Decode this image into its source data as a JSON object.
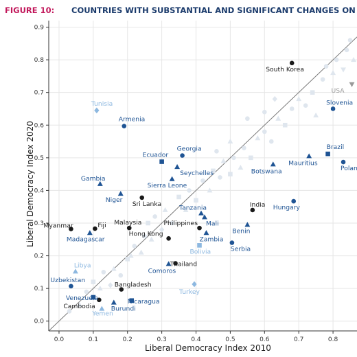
{
  "figure": {
    "label": "FIGURE 10:",
    "title": "COUNTRIES WITH SUBSTANTIAL AND SIGNIFICANT CHANGES ON THE LI"
  },
  "colors": {
    "title_label": "#c2185b",
    "title_text": "#1a3a6b",
    "dark_blue": "#1f5494",
    "light_blue": "#8db8e0",
    "black": "#1a1a1a",
    "gray": "#9a9a9a",
    "faint": "#dfe6ee",
    "grid": "#e6e6e6"
  },
  "chart_data": {
    "type": "scatter",
    "title": "COUNTRIES WITH SUBSTANTIAL AND SIGNIFICANT CHANGES ON THE LI",
    "xlabel": "Liberal Democracy Index 2010",
    "ylabel": "Liberal Democracy Index 2020",
    "xlim": [
      -0.03,
      0.87
    ],
    "ylim": [
      -0.03,
      0.92
    ],
    "xticks": [
      "0.0",
      "0.1",
      "0.2",
      "0.3",
      "0.4",
      "0.5",
      "0.6",
      "0.7",
      "0.8"
    ],
    "yticks": [
      "0.0",
      "0.1",
      "0.2",
      "0.3",
      "0.4",
      "0.5",
      "0.6",
      "0.7",
      "0.8",
      "0.9"
    ],
    "grid": true,
    "reference_line": "y = x",
    "labeled_points": [
      {
        "name": "South Korea",
        "x": 0.68,
        "y": 0.79,
        "shape": "circle",
        "color": "black"
      },
      {
        "name": "USA",
        "x": 0.855,
        "y": 0.725,
        "shape": "triangle-down",
        "color": "gray"
      },
      {
        "name": "Tunisia",
        "x": 0.11,
        "y": 0.645,
        "shape": "diamond",
        "color": "light"
      },
      {
        "name": "Armenia",
        "x": 0.19,
        "y": 0.597,
        "shape": "circle",
        "color": "dark"
      },
      {
        "name": "Slovenia",
        "x": 0.8,
        "y": 0.65,
        "shape": "circle",
        "color": "dark"
      },
      {
        "name": "Ecuador",
        "x": 0.3,
        "y": 0.488,
        "shape": "square",
        "color": "dark"
      },
      {
        "name": "Georgia",
        "x": 0.36,
        "y": 0.507,
        "shape": "circle",
        "color": "dark"
      },
      {
        "name": "Brazil",
        "x": 0.785,
        "y": 0.512,
        "shape": "square",
        "color": "dark"
      },
      {
        "name": "Mauritius",
        "x": 0.73,
        "y": 0.505,
        "shape": "triangle",
        "color": "dark"
      },
      {
        "name": "Poland",
        "x": 0.83,
        "y": 0.487,
        "shape": "circle",
        "color": "dark"
      },
      {
        "name": "Botswana",
        "x": 0.625,
        "y": 0.48,
        "shape": "triangle",
        "color": "dark"
      },
      {
        "name": "Seychelles",
        "x": 0.345,
        "y": 0.472,
        "shape": "triangle",
        "color": "dark"
      },
      {
        "name": "Gambia",
        "x": 0.12,
        "y": 0.42,
        "shape": "triangle",
        "color": "dark"
      },
      {
        "name": "Sierra Leone",
        "x": 0.33,
        "y": 0.435,
        "shape": "triangle",
        "color": "dark"
      },
      {
        "name": "Niger",
        "x": 0.18,
        "y": 0.39,
        "shape": "triangle",
        "color": "dark"
      },
      {
        "name": "Sri Lanka",
        "x": 0.242,
        "y": 0.378,
        "shape": "circle",
        "color": "black"
      },
      {
        "name": "India",
        "x": 0.565,
        "y": 0.34,
        "shape": "circle",
        "color": "black"
      },
      {
        "name": "Hungary",
        "x": 0.685,
        "y": 0.367,
        "shape": "circle",
        "color": "dark"
      },
      {
        "name": "Tanzania",
        "x": 0.415,
        "y": 0.33,
        "shape": "triangle",
        "color": "dark"
      },
      {
        "name": "Mali",
        "x": 0.425,
        "y": 0.318,
        "shape": "triangle",
        "color": "dark"
      },
      {
        "name": "Myanmar",
        "x": 0.035,
        "y": 0.282,
        "shape": "circle",
        "color": "black"
      },
      {
        "name": "Fiji",
        "x": 0.105,
        "y": 0.283,
        "shape": "circle",
        "color": "black"
      },
      {
        "name": "Malaysia",
        "x": 0.205,
        "y": 0.285,
        "shape": "circle",
        "color": "black"
      },
      {
        "name": "Philippines",
        "x": 0.41,
        "y": 0.285,
        "shape": "circle",
        "color": "black"
      },
      {
        "name": "Madagascar",
        "x": 0.09,
        "y": 0.27,
        "shape": "triangle",
        "color": "dark"
      },
      {
        "name": "Hong Kong",
        "x": 0.32,
        "y": 0.253,
        "shape": "circle",
        "color": "black"
      },
      {
        "name": "Zambia",
        "x": 0.43,
        "y": 0.27,
        "shape": "triangle",
        "color": "dark"
      },
      {
        "name": "Benin",
        "x": 0.55,
        "y": 0.295,
        "shape": "triangle",
        "color": "dark"
      },
      {
        "name": "Serbia",
        "x": 0.505,
        "y": 0.24,
        "shape": "circle",
        "color": "dark"
      },
      {
        "name": "Bolivia",
        "x": 0.41,
        "y": 0.232,
        "shape": "square",
        "color": "light"
      },
      {
        "name": "Thailand",
        "x": 0.34,
        "y": 0.177,
        "shape": "circle",
        "color": "black"
      },
      {
        "name": "Comoros",
        "x": 0.32,
        "y": 0.175,
        "shape": "triangle",
        "color": "dark"
      },
      {
        "name": "Libya",
        "x": 0.048,
        "y": 0.152,
        "shape": "triangle",
        "color": "light"
      },
      {
        "name": "Uzbekistan",
        "x": 0.035,
        "y": 0.107,
        "shape": "circle",
        "color": "dark"
      },
      {
        "name": "Bangladesh",
        "x": 0.182,
        "y": 0.097,
        "shape": "circle",
        "color": "black"
      },
      {
        "name": "Turkey",
        "x": 0.395,
        "y": 0.113,
        "shape": "diamond",
        "color": "light"
      },
      {
        "name": "Venezuela",
        "x": 0.1,
        "y": 0.073,
        "shape": "square",
        "color": "dark"
      },
      {
        "name": "Nicaragua",
        "x": 0.212,
        "y": 0.063,
        "shape": "square",
        "color": "dark"
      },
      {
        "name": "Cambodia",
        "x": 0.117,
        "y": 0.065,
        "shape": "circle",
        "color": "black"
      },
      {
        "name": "Burundi",
        "x": 0.16,
        "y": 0.057,
        "shape": "triangle",
        "color": "dark"
      },
      {
        "name": "Yemen",
        "x": 0.125,
        "y": 0.038,
        "shape": "triangle",
        "color": "light"
      }
    ],
    "background_points": [
      {
        "x": 0.03,
        "y": 0.03,
        "shape": "circle"
      },
      {
        "x": 0.06,
        "y": 0.05,
        "shape": "triangle"
      },
      {
        "x": 0.08,
        "y": 0.09,
        "shape": "circle"
      },
      {
        "x": 0.1,
        "y": 0.12,
        "shape": "square"
      },
      {
        "x": 0.12,
        "y": 0.1,
        "shape": "triangle"
      },
      {
        "x": 0.13,
        "y": 0.15,
        "shape": "circle"
      },
      {
        "x": 0.15,
        "y": 0.11,
        "shape": "diamond"
      },
      {
        "x": 0.16,
        "y": 0.16,
        "shape": "triangle"
      },
      {
        "x": 0.18,
        "y": 0.14,
        "shape": "circle"
      },
      {
        "x": 0.2,
        "y": 0.19,
        "shape": "square"
      },
      {
        "x": 0.21,
        "y": 0.2,
        "shape": "triangle"
      },
      {
        "x": 0.22,
        "y": 0.23,
        "shape": "circle"
      },
      {
        "x": 0.24,
        "y": 0.21,
        "shape": "triangle"
      },
      {
        "x": 0.25,
        "y": 0.26,
        "shape": "circle"
      },
      {
        "x": 0.26,
        "y": 0.3,
        "shape": "square"
      },
      {
        "x": 0.27,
        "y": 0.25,
        "shape": "triangle"
      },
      {
        "x": 0.28,
        "y": 0.32,
        "shape": "circle"
      },
      {
        "x": 0.3,
        "y": 0.28,
        "shape": "diamond"
      },
      {
        "x": 0.31,
        "y": 0.34,
        "shape": "triangle"
      },
      {
        "x": 0.33,
        "y": 0.3,
        "shape": "circle"
      },
      {
        "x": 0.35,
        "y": 0.38,
        "shape": "square"
      },
      {
        "x": 0.37,
        "y": 0.34,
        "shape": "triangle"
      },
      {
        "x": 0.38,
        "y": 0.4,
        "shape": "circle"
      },
      {
        "x": 0.4,
        "y": 0.37,
        "shape": "square"
      },
      {
        "x": 0.42,
        "y": 0.43,
        "shape": "circle"
      },
      {
        "x": 0.44,
        "y": 0.4,
        "shape": "triangle"
      },
      {
        "x": 0.45,
        "y": 0.46,
        "shape": "square"
      },
      {
        "x": 0.47,
        "y": 0.44,
        "shape": "circle"
      },
      {
        "x": 0.48,
        "y": 0.49,
        "shape": "triangle"
      },
      {
        "x": 0.5,
        "y": 0.45,
        "shape": "square"
      },
      {
        "x": 0.51,
        "y": 0.5,
        "shape": "circle"
      },
      {
        "x": 0.53,
        "y": 0.47,
        "shape": "triangle"
      },
      {
        "x": 0.54,
        "y": 0.53,
        "shape": "circle"
      },
      {
        "x": 0.56,
        "y": 0.5,
        "shape": "square"
      },
      {
        "x": 0.58,
        "y": 0.56,
        "shape": "triangle"
      },
      {
        "x": 0.6,
        "y": 0.58,
        "shape": "circle"
      },
      {
        "x": 0.62,
        "y": 0.55,
        "shape": "circle"
      },
      {
        "x": 0.64,
        "y": 0.62,
        "shape": "triangle"
      },
      {
        "x": 0.66,
        "y": 0.6,
        "shape": "square"
      },
      {
        "x": 0.68,
        "y": 0.65,
        "shape": "circle"
      },
      {
        "x": 0.7,
        "y": 0.68,
        "shape": "triangle"
      },
      {
        "x": 0.72,
        "y": 0.66,
        "shape": "circle"
      },
      {
        "x": 0.74,
        "y": 0.7,
        "shape": "square"
      },
      {
        "x": 0.75,
        "y": 0.63,
        "shape": "triangle"
      },
      {
        "x": 0.77,
        "y": 0.74,
        "shape": "circle"
      },
      {
        "x": 0.78,
        "y": 0.78,
        "shape": "circle"
      },
      {
        "x": 0.8,
        "y": 0.76,
        "shape": "triangle"
      },
      {
        "x": 0.81,
        "y": 0.8,
        "shape": "circle"
      },
      {
        "x": 0.83,
        "y": 0.77,
        "shape": "triangle-down"
      },
      {
        "x": 0.84,
        "y": 0.83,
        "shape": "circle"
      },
      {
        "x": 0.85,
        "y": 0.86,
        "shape": "circle"
      },
      {
        "x": 0.86,
        "y": 0.8,
        "shape": "triangle"
      },
      {
        "x": 0.6,
        "y": 0.64,
        "shape": "circle"
      },
      {
        "x": 0.63,
        "y": 0.68,
        "shape": "diamond"
      },
      {
        "x": 0.55,
        "y": 0.62,
        "shape": "circle"
      },
      {
        "x": 0.5,
        "y": 0.55,
        "shape": "triangle"
      },
      {
        "x": 0.46,
        "y": 0.52,
        "shape": "circle"
      }
    ]
  }
}
